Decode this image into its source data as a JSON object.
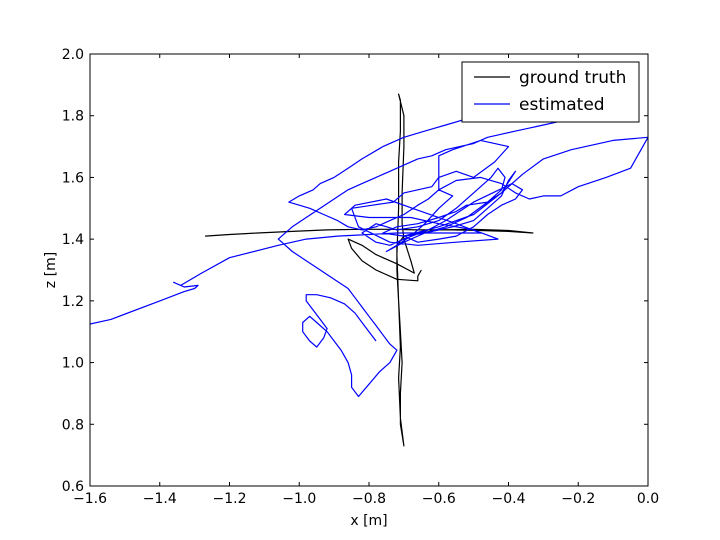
{
  "chart_data": {
    "type": "line",
    "title": "",
    "xlabel": "x [m]",
    "ylabel": "z [m]",
    "xlim": [
      -1.6,
      0.0
    ],
    "ylim": [
      0.6,
      2.0
    ],
    "xticks": [
      -1.6,
      -1.4,
      -1.2,
      -1.0,
      -0.8,
      -0.6,
      -0.4,
      -0.2,
      0.0
    ],
    "yticks": [
      0.6,
      0.8,
      1.0,
      1.2,
      1.4,
      1.6,
      1.8,
      2.0
    ],
    "xtick_labels": [
      "−1.6",
      "−1.4",
      "−1.2",
      "−1.0",
      "−0.8",
      "−0.6",
      "−0.4",
      "−0.2",
      "0.0"
    ],
    "ytick_labels": [
      "0.6",
      "0.8",
      "1.0",
      "1.2",
      "1.4",
      "1.6",
      "1.8",
      "2.0"
    ],
    "grid": false,
    "legend_position": "top-right",
    "series": [
      {
        "name": "ground truth",
        "color": "#000000",
        "points": [
          [
            -1.27,
            1.41
          ],
          [
            -1.2,
            1.415
          ],
          [
            -1.12,
            1.42
          ],
          [
            -1.02,
            1.425
          ],
          [
            -0.92,
            1.43
          ],
          [
            -0.82,
            1.432
          ],
          [
            -0.74,
            1.432
          ],
          [
            -0.66,
            1.43
          ],
          [
            -0.56,
            1.43
          ],
          [
            -0.48,
            1.428
          ],
          [
            -0.4,
            1.425
          ],
          [
            -0.33,
            1.42
          ],
          [
            -0.4,
            1.428
          ],
          [
            -0.5,
            1.432
          ],
          [
            -0.6,
            1.43
          ],
          [
            -0.7,
            1.41
          ],
          [
            -0.72,
            1.38
          ],
          [
            -0.72,
            1.3
          ],
          [
            -0.715,
            1.2
          ],
          [
            -0.71,
            1.1
          ],
          [
            -0.705,
            1.0
          ],
          [
            -0.71,
            0.9
          ],
          [
            -0.71,
            0.8
          ],
          [
            -0.7,
            0.73
          ],
          [
            -0.71,
            0.82
          ],
          [
            -0.715,
            0.95
          ],
          [
            -0.71,
            1.05
          ],
          [
            -0.715,
            1.2
          ],
          [
            -0.72,
            1.35
          ],
          [
            -0.715,
            1.5
          ],
          [
            -0.715,
            1.65
          ],
          [
            -0.71,
            1.75
          ],
          [
            -0.71,
            1.85
          ],
          [
            -0.715,
            1.87
          ],
          [
            -0.7,
            1.8
          ],
          [
            -0.7,
            1.7
          ],
          [
            -0.705,
            1.55
          ],
          [
            -0.705,
            1.45
          ],
          [
            -0.7,
            1.4
          ],
          [
            -0.68,
            1.33
          ],
          [
            -0.67,
            1.29
          ],
          [
            -0.72,
            1.32
          ],
          [
            -0.78,
            1.35
          ],
          [
            -0.82,
            1.38
          ],
          [
            -0.86,
            1.4
          ],
          [
            -0.85,
            1.37
          ],
          [
            -0.82,
            1.33
          ],
          [
            -0.78,
            1.3
          ],
          [
            -0.72,
            1.27
          ],
          [
            -0.66,
            1.265
          ],
          [
            -0.66,
            1.28
          ],
          [
            -0.65,
            1.3
          ]
        ]
      },
      {
        "name": "estimated",
        "color": "#0000ff",
        "points": [
          [
            -1.6,
            1.125
          ],
          [
            -1.54,
            1.14
          ],
          [
            -1.4,
            1.2
          ],
          [
            -1.33,
            1.23
          ],
          [
            -1.3,
            1.24
          ],
          [
            -1.29,
            1.25
          ],
          [
            -1.33,
            1.245
          ],
          [
            -1.36,
            1.26
          ],
          [
            -1.34,
            1.25
          ],
          [
            -1.28,
            1.29
          ],
          [
            -1.2,
            1.34
          ],
          [
            -1.06,
            1.38
          ],
          [
            -0.98,
            1.4
          ],
          [
            -0.89,
            1.41
          ],
          [
            -0.8,
            1.415
          ],
          [
            -0.72,
            1.42
          ],
          [
            -0.63,
            1.42
          ],
          [
            -0.55,
            1.42
          ],
          [
            -0.48,
            1.42
          ],
          [
            -0.55,
            1.45
          ],
          [
            -0.65,
            1.49
          ],
          [
            -0.75,
            1.53
          ],
          [
            -0.84,
            1.51
          ],
          [
            -0.87,
            1.48
          ],
          [
            -0.8,
            1.47
          ],
          [
            -0.68,
            1.47
          ],
          [
            -0.6,
            1.45
          ],
          [
            -0.5,
            1.43
          ],
          [
            -0.43,
            1.4
          ],
          [
            -0.55,
            1.39
          ],
          [
            -0.66,
            1.38
          ],
          [
            -0.74,
            1.39
          ],
          [
            -0.83,
            1.44
          ],
          [
            -0.85,
            1.5
          ],
          [
            -0.79,
            1.51
          ],
          [
            -0.73,
            1.52
          ],
          [
            -0.7,
            1.55
          ],
          [
            -0.62,
            1.57
          ],
          [
            -0.6,
            1.6
          ],
          [
            -0.55,
            1.62
          ],
          [
            -0.5,
            1.6
          ],
          [
            -0.44,
            1.65
          ],
          [
            -0.4,
            1.7
          ],
          [
            -0.48,
            1.72
          ],
          [
            -0.56,
            1.69
          ],
          [
            -0.6,
            1.67
          ],
          [
            -0.6,
            1.61
          ],
          [
            -0.6,
            1.56
          ],
          [
            -0.56,
            1.54
          ],
          [
            -0.6,
            1.5
          ],
          [
            -0.64,
            1.45
          ],
          [
            -0.68,
            1.41
          ],
          [
            -0.72,
            1.38
          ],
          [
            -0.75,
            1.36
          ],
          [
            -0.7,
            1.39
          ],
          [
            -0.64,
            1.42
          ],
          [
            -0.56,
            1.44
          ],
          [
            -0.5,
            1.46
          ],
          [
            -0.46,
            1.5
          ],
          [
            -0.42,
            1.54
          ],
          [
            -0.4,
            1.59
          ],
          [
            -0.38,
            1.62
          ],
          [
            -0.42,
            1.55
          ],
          [
            -0.5,
            1.48
          ],
          [
            -0.6,
            1.44
          ],
          [
            -0.7,
            1.41
          ],
          [
            -0.66,
            1.39
          ],
          [
            -0.6,
            1.4
          ],
          [
            -0.55,
            1.41
          ],
          [
            -0.5,
            1.44
          ],
          [
            -0.46,
            1.48
          ],
          [
            -0.42,
            1.51
          ],
          [
            -0.38,
            1.53
          ],
          [
            -0.36,
            1.56
          ],
          [
            -0.39,
            1.58
          ],
          [
            -0.5,
            1.52
          ],
          [
            -0.58,
            1.46
          ],
          [
            -0.63,
            1.43
          ],
          [
            -0.7,
            1.4
          ],
          [
            -0.74,
            1.38
          ],
          [
            -0.78,
            1.39
          ],
          [
            -0.82,
            1.42
          ],
          [
            -0.78,
            1.45
          ],
          [
            -0.72,
            1.43
          ],
          [
            -0.66,
            1.44
          ],
          [
            -0.6,
            1.46
          ],
          [
            -0.55,
            1.5
          ],
          [
            -0.5,
            1.55
          ],
          [
            -0.47,
            1.58
          ],
          [
            -0.45,
            1.6
          ],
          [
            -0.43,
            1.63
          ],
          [
            -0.41,
            1.6
          ],
          [
            -0.42,
            1.56
          ],
          [
            -0.46,
            1.52
          ],
          [
            -0.52,
            1.47
          ],
          [
            -0.58,
            1.44
          ],
          [
            -0.64,
            1.42
          ],
          [
            -0.7,
            1.41
          ],
          [
            -0.76,
            1.42
          ],
          [
            -0.72,
            1.44
          ],
          [
            -0.66,
            1.45
          ],
          [
            -0.6,
            1.47
          ],
          [
            -0.55,
            1.49
          ],
          [
            -0.52,
            1.51
          ],
          [
            -0.46,
            1.52
          ],
          [
            -0.42,
            1.55
          ],
          [
            -0.36,
            1.61
          ],
          [
            -0.3,
            1.66
          ],
          [
            -0.22,
            1.69
          ],
          [
            -0.1,
            1.72
          ],
          [
            0.0,
            1.73
          ],
          [
            -0.05,
            1.63
          ],
          [
            -0.12,
            1.6
          ],
          [
            -0.2,
            1.57
          ],
          [
            -0.25,
            1.54
          ],
          [
            -0.3,
            1.54
          ],
          [
            -0.34,
            1.53
          ],
          [
            -0.38,
            1.55
          ],
          [
            -0.42,
            1.58
          ],
          [
            -0.48,
            1.6
          ],
          [
            -0.55,
            1.59
          ],
          [
            -0.6,
            1.56
          ],
          [
            -0.63,
            1.53
          ],
          [
            -0.66,
            1.51
          ],
          [
            -0.7,
            1.48
          ],
          [
            -0.74,
            1.46
          ],
          [
            -0.78,
            1.44
          ],
          [
            -0.82,
            1.43
          ],
          [
            -0.86,
            1.44
          ],
          [
            -0.89,
            1.46
          ],
          [
            -0.93,
            1.48
          ],
          [
            -0.97,
            1.5
          ],
          [
            -1.0,
            1.51
          ],
          [
            -1.03,
            1.52
          ],
          [
            -1.0,
            1.54
          ],
          [
            -0.96,
            1.56
          ],
          [
            -0.94,
            1.58
          ],
          [
            -0.9,
            1.6
          ],
          [
            -0.86,
            1.63
          ],
          [
            -0.82,
            1.66
          ],
          [
            -0.76,
            1.7
          ],
          [
            -0.7,
            1.73
          ],
          [
            -0.64,
            1.75
          ],
          [
            -0.58,
            1.77
          ],
          [
            -0.52,
            1.79
          ],
          [
            -0.46,
            1.8
          ],
          [
            -0.4,
            1.82
          ],
          [
            -0.34,
            1.84
          ],
          [
            -0.3,
            1.85
          ],
          [
            -0.26,
            1.87
          ],
          [
            -0.21,
            1.88
          ],
          [
            -0.17,
            1.89
          ],
          [
            -0.13,
            1.9
          ],
          [
            -0.1,
            1.9
          ],
          [
            -0.06,
            1.89
          ],
          [
            -0.03,
            1.88
          ],
          [
            -0.06,
            1.86
          ],
          [
            -0.1,
            1.84
          ],
          [
            -0.14,
            1.82
          ],
          [
            -0.18,
            1.8
          ],
          [
            -0.22,
            1.79
          ],
          [
            -0.26,
            1.78
          ],
          [
            -0.3,
            1.77
          ],
          [
            -0.34,
            1.76
          ],
          [
            -0.38,
            1.75
          ],
          [
            -0.42,
            1.74
          ],
          [
            -0.46,
            1.73
          ],
          [
            -0.5,
            1.71
          ],
          [
            -0.54,
            1.7
          ],
          [
            -0.58,
            1.69
          ],
          [
            -0.62,
            1.67
          ],
          [
            -0.66,
            1.66
          ],
          [
            -0.7,
            1.64
          ],
          [
            -0.74,
            1.62
          ],
          [
            -0.78,
            1.6
          ],
          [
            -0.82,
            1.58
          ],
          [
            -0.86,
            1.56
          ],
          [
            -0.9,
            1.53
          ],
          [
            -0.94,
            1.5
          ],
          [
            -0.98,
            1.47
          ],
          [
            -1.02,
            1.44
          ],
          [
            -1.06,
            1.4
          ],
          [
            -1.02,
            1.36
          ],
          [
            -0.98,
            1.33
          ],
          [
            -0.94,
            1.3
          ],
          [
            -0.9,
            1.27
          ],
          [
            -0.86,
            1.24
          ],
          [
            -0.84,
            1.21
          ],
          [
            -0.82,
            1.18
          ],
          [
            -0.8,
            1.15
          ],
          [
            -0.78,
            1.12
          ],
          [
            -0.76,
            1.09
          ],
          [
            -0.74,
            1.06
          ],
          [
            -0.72,
            1.04
          ],
          [
            -0.74,
            1.0
          ],
          [
            -0.77,
            0.97
          ],
          [
            -0.8,
            0.93
          ],
          [
            -0.83,
            0.89
          ],
          [
            -0.85,
            0.92
          ],
          [
            -0.85,
            0.96
          ],
          [
            -0.86,
            1.0
          ],
          [
            -0.88,
            1.04
          ],
          [
            -0.9,
            1.07
          ],
          [
            -0.92,
            1.1
          ],
          [
            -0.95,
            1.13
          ],
          [
            -0.97,
            1.15
          ],
          [
            -0.99,
            1.13
          ],
          [
            -0.99,
            1.1
          ],
          [
            -0.97,
            1.07
          ],
          [
            -0.95,
            1.05
          ],
          [
            -0.93,
            1.08
          ],
          [
            -0.92,
            1.11
          ],
          [
            -0.94,
            1.14
          ],
          [
            -0.96,
            1.17
          ],
          [
            -0.98,
            1.2
          ],
          [
            -0.98,
            1.22
          ],
          [
            -0.95,
            1.22
          ],
          [
            -0.91,
            1.21
          ],
          [
            -0.87,
            1.19
          ],
          [
            -0.84,
            1.16
          ],
          [
            -0.82,
            1.13
          ],
          [
            -0.8,
            1.1
          ],
          [
            -0.78,
            1.07
          ]
        ]
      }
    ]
  }
}
